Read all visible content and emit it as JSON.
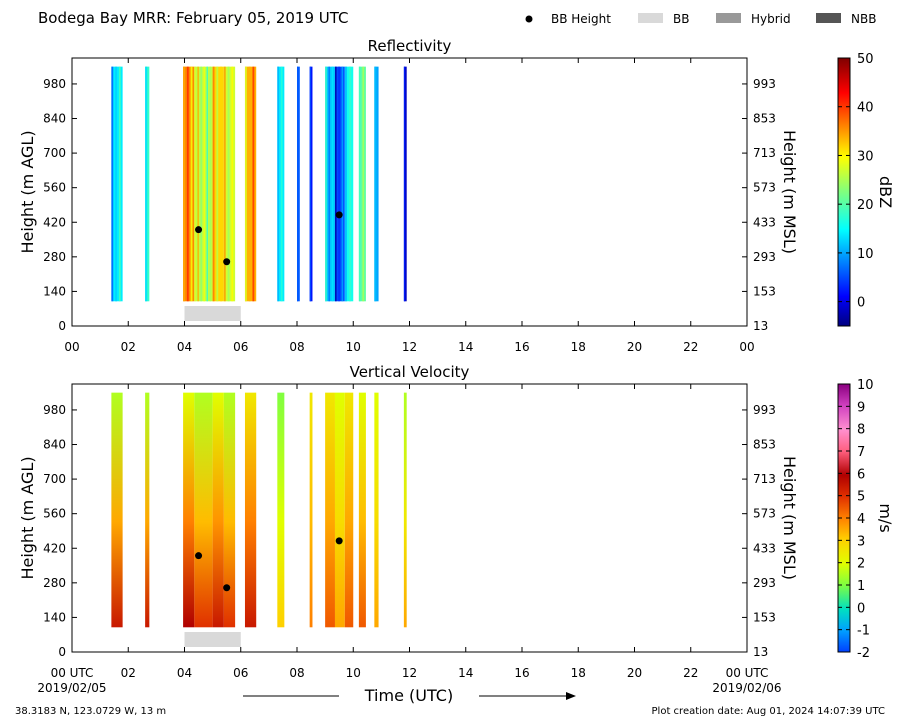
{
  "header": {
    "title": "Bodega Bay MRR:  February 05, 2019 UTC",
    "legend": [
      {
        "label": "BB Height",
        "kind": "dot",
        "color": "#000000"
      },
      {
        "label": "BB",
        "kind": "patch",
        "color": "#d9d9d9"
      },
      {
        "label": "Hybrid",
        "kind": "patch",
        "color": "#999999"
      },
      {
        "label": "NBB",
        "kind": "patch",
        "color": "#555555"
      }
    ]
  },
  "footer": {
    "location": "38.3183 N, 123.0729 W, 13 m",
    "creation": "Plot creation date: Aug 01, 2024 14:07:39 UTC",
    "date_start": "2019/02/05",
    "date_end": "2019/02/06",
    "xlabel": "Time (UTC)"
  },
  "chart_data": [
    {
      "type": "heatmap",
      "title": "Reflectivity",
      "ylabel": "Height (m AGL)",
      "y2label": "Height (m MSL)",
      "xlim": [
        0,
        24
      ],
      "ylim": [
        0,
        1085
      ],
      "x_tick_labels": [
        "00",
        "02",
        "04",
        "06",
        "08",
        "10",
        "12",
        "14",
        "16",
        "18",
        "20",
        "22",
        "00"
      ],
      "y_tick_values": [
        0,
        140,
        280,
        420,
        560,
        700,
        840,
        980
      ],
      "y2_tick_labels": [
        "13",
        "153",
        "293",
        "433",
        "573",
        "713",
        "853",
        "993"
      ],
      "colorbar": {
        "label": "dBZ",
        "min": -5,
        "max": 50,
        "ticks": [
          0,
          10,
          20,
          30,
          40,
          50
        ]
      },
      "data_height_range": [
        100,
        1050
      ],
      "bright_band_heights": [
        {
          "time": 4.5,
          "height": 390
        },
        {
          "time": 5.5,
          "height": 260
        },
        {
          "time": 9.5,
          "height": 450
        }
      ],
      "bright_band_type": [
        {
          "start": 4.0,
          "end": 6.0,
          "type": "BB"
        }
      ],
      "columns": [
        {
          "start": 1.4,
          "end": 1.8,
          "value": 14
        },
        {
          "start": 2.6,
          "end": 2.75,
          "value": 18
        },
        {
          "start": 3.95,
          "end": 4.35,
          "value": 36
        },
        {
          "start": 4.35,
          "end": 5.0,
          "value": 26
        },
        {
          "start": 5.0,
          "end": 5.4,
          "value": 32
        },
        {
          "start": 5.4,
          "end": 5.8,
          "value": 27
        },
        {
          "start": 6.15,
          "end": 6.55,
          "value": 34
        },
        {
          "start": 7.3,
          "end": 7.55,
          "value": 14
        },
        {
          "start": 8.0,
          "end": 8.1,
          "value": 6
        },
        {
          "start": 8.45,
          "end": 8.55,
          "value": 2
        },
        {
          "start": 9.0,
          "end": 9.35,
          "value": 12
        },
        {
          "start": 9.35,
          "end": 9.7,
          "value": 5
        },
        {
          "start": 9.7,
          "end": 10.0,
          "value": 16
        },
        {
          "start": 10.2,
          "end": 10.45,
          "value": 20
        },
        {
          "start": 10.75,
          "end": 10.9,
          "value": 10
        },
        {
          "start": 11.8,
          "end": 11.9,
          "value": -2
        }
      ]
    },
    {
      "type": "heatmap",
      "title": "Vertical Velocity",
      "ylabel": "Height (m AGL)",
      "y2label": "Height (m MSL)",
      "xlim": [
        0,
        24
      ],
      "ylim": [
        0,
        1085
      ],
      "x_tick_labels": [
        "00 UTC",
        "02",
        "04",
        "06",
        "08",
        "10",
        "12",
        "14",
        "16",
        "18",
        "20",
        "22",
        "00 UTC"
      ],
      "y_tick_values": [
        0,
        140,
        280,
        420,
        560,
        700,
        840,
        980
      ],
      "y2_tick_labels": [
        "13",
        "153",
        "293",
        "433",
        "573",
        "713",
        "853",
        "993"
      ],
      "colorbar": {
        "label": "m/s",
        "min": -2,
        "max": 10,
        "ticks": [
          -2,
          -1,
          0,
          1,
          2,
          3,
          4,
          5,
          6,
          7,
          8,
          9,
          10
        ]
      },
      "data_height_range": [
        100,
        1050
      ],
      "bright_band_heights": [
        {
          "time": 4.5,
          "height": 390
        },
        {
          "time": 5.5,
          "height": 260
        },
        {
          "time": 9.5,
          "height": 450
        }
      ],
      "bright_band_type": [
        {
          "start": 4.0,
          "end": 6.0,
          "type": "BB"
        }
      ],
      "columns": [
        {
          "start": 1.4,
          "end": 1.8,
          "top": 1.5,
          "bottom": 5.5
        },
        {
          "start": 2.6,
          "end": 2.75,
          "top": 1.5,
          "bottom": 5.5
        },
        {
          "start": 3.95,
          "end": 4.35,
          "top": 2.0,
          "bottom": 6.0
        },
        {
          "start": 4.35,
          "end": 5.0,
          "top": 1.5,
          "bottom": 5.0
        },
        {
          "start": 5.0,
          "end": 5.4,
          "top": 2.0,
          "bottom": 5.5
        },
        {
          "start": 5.4,
          "end": 5.8,
          "top": 1.5,
          "bottom": 5.0
        },
        {
          "start": 6.15,
          "end": 6.55,
          "top": 2.5,
          "bottom": 5.5
        },
        {
          "start": 7.3,
          "end": 7.55,
          "top": 1.0,
          "bottom": 3.0
        },
        {
          "start": 8.45,
          "end": 8.55,
          "top": 2.5,
          "bottom": 4.0
        },
        {
          "start": 9.0,
          "end": 9.35,
          "top": 2.5,
          "bottom": 4.5
        },
        {
          "start": 9.35,
          "end": 9.7,
          "top": 2.0,
          "bottom": 3.5
        },
        {
          "start": 9.7,
          "end": 10.0,
          "top": 2.5,
          "bottom": 4.5
        },
        {
          "start": 10.2,
          "end": 10.45,
          "top": 2.0,
          "bottom": 4.5
        },
        {
          "start": 10.75,
          "end": 10.9,
          "top": 2.0,
          "bottom": 3.5
        },
        {
          "start": 11.8,
          "end": 11.9,
          "top": 1.5,
          "bottom": 3.5
        }
      ]
    }
  ]
}
